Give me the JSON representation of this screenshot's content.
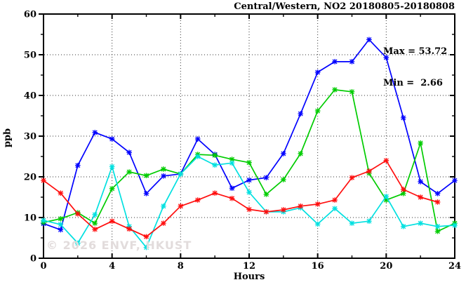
{
  "chart": {
    "title": "Central/Western, NO2 20180805-20180808",
    "max_label": "Max = 53.72",
    "min_label": "Min =  2.66",
    "ylabel": "ppb",
    "xlabel": "Hours",
    "watermark": "© 2026 ENVF, HKUST"
  },
  "chart_data": {
    "type": "line",
    "title": "Central/Western, NO2 20180805-20180808",
    "xlabel": "Hours",
    "ylabel": "ppb",
    "xlim": [
      0,
      24
    ],
    "ylim": [
      0,
      60
    ],
    "x_major_ticks": [
      0,
      4,
      8,
      12,
      16,
      20,
      24
    ],
    "x_minor_step": 2,
    "y_major_ticks": [
      0,
      10,
      20,
      30,
      40,
      50,
      60
    ],
    "y_minor_step": 5,
    "grid": "dotted-at-major-ticks",
    "legend": "none",
    "annotations": {
      "max": 53.72,
      "min": 2.66
    },
    "x": [
      0,
      1,
      2,
      3,
      4,
      5,
      6,
      7,
      8,
      9,
      10,
      11,
      12,
      13,
      14,
      15,
      16,
      17,
      18,
      19,
      20,
      21,
      22,
      23,
      24
    ],
    "series": [
      {
        "name": "line-blue",
        "color": "#0000ff",
        "marker": "star",
        "values": [
          8.5,
          7.0,
          22.8,
          30.9,
          29.3,
          26.0,
          15.9,
          20.2,
          20.7,
          29.3,
          25.5,
          17.2,
          19.2,
          19.8,
          25.7,
          35.5,
          45.7,
          48.3,
          48.3,
          53.72,
          49.3,
          34.5,
          18.8,
          15.9,
          19.1
        ]
      },
      {
        "name": "line-green",
        "color": "#00cc00",
        "marker": "star",
        "values": [
          8.8,
          9.7,
          11.2,
          8.6,
          17.1,
          21.2,
          20.3,
          21.9,
          20.7,
          25.5,
          25.3,
          24.3,
          23.5,
          15.7,
          19.3,
          25.7,
          36.2,
          41.4,
          40.9,
          20.9,
          14.3,
          15.9,
          28.3,
          6.6,
          8.6
        ]
      },
      {
        "name": "line-cyan",
        "color": "#00e0e0",
        "marker": "star",
        "values": [
          9.3,
          8.3,
          3.7,
          10.7,
          22.5,
          7.8,
          2.66,
          12.8,
          20.7,
          25.0,
          22.9,
          23.4,
          16.2,
          11.4,
          11.4,
          12.4,
          8.4,
          12.2,
          8.6,
          9.1,
          15.2,
          7.8,
          8.6,
          7.8,
          8.1
        ]
      },
      {
        "name": "line-red",
        "color": "#ff0f0f",
        "marker": "star",
        "values": [
          19.1,
          16.0,
          10.9,
          7.1,
          9.1,
          7.2,
          5.3,
          8.6,
          12.8,
          14.3,
          16.0,
          14.7,
          12.0,
          11.4,
          11.9,
          12.8,
          13.3,
          14.3,
          19.8,
          21.4,
          24.0,
          16.9,
          15.0,
          13.8,
          null
        ]
      }
    ]
  }
}
